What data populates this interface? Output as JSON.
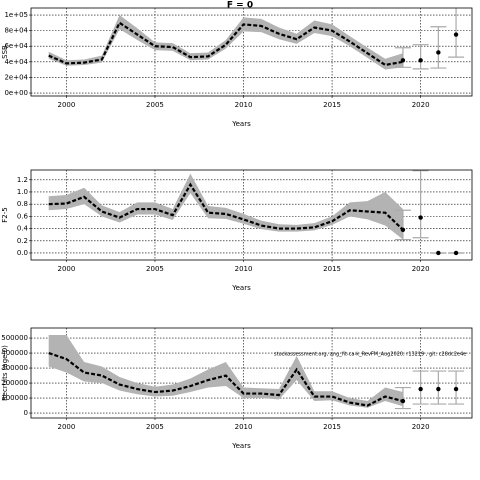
{
  "chart_data": [
    {
      "type": "line",
      "title": "F = 0",
      "ylabel": "SSB",
      "xlabel": "Years",
      "xlim": [
        1998,
        2022.9
      ],
      "xticks": [
        2000,
        2005,
        2010,
        2015,
        2020
      ],
      "ylim": [
        -3800,
        109000
      ],
      "yticks": [
        {
          "value": 0,
          "label": "0e+00"
        },
        {
          "value": 20000,
          "label": "2e+04"
        },
        {
          "value": 40000,
          "label": "4e+04"
        },
        {
          "value": 60000,
          "label": "6e+04"
        },
        {
          "value": 80000,
          "label": "8e+04"
        },
        {
          "value": 100000,
          "label": "1e+05"
        }
      ],
      "grid": true,
      "x": [
        1999,
        2000,
        2001,
        2002,
        2003,
        2004,
        2005,
        2006,
        2007,
        2008,
        2009,
        2010,
        2011,
        2012,
        2013,
        2014,
        2015,
        2016,
        2017,
        2018,
        2019
      ],
      "series": [
        {
          "color": "#000000",
          "band_color": "#b3b3b3",
          "values": [
            48000,
            38000,
            39000,
            43000,
            90000,
            75000,
            60000,
            59000,
            46000,
            47000,
            62000,
            88000,
            86000,
            76000,
            69000,
            84000,
            80000,
            66000,
            51000,
            36000,
            40000
          ],
          "lower": [
            44000,
            35000,
            36000,
            39000,
            82000,
            68000,
            55000,
            54000,
            42000,
            43000,
            57000,
            79000,
            78000,
            69000,
            63000,
            77000,
            73000,
            60000,
            45000,
            30000,
            33000
          ],
          "upper": [
            53000,
            42000,
            43000,
            48000,
            100000,
            83000,
            65000,
            64000,
            51000,
            52000,
            68000,
            97000,
            95000,
            84000,
            76000,
            93000,
            88000,
            73000,
            58000,
            44000,
            51000
          ]
        }
      ],
      "points": {
        "color": "#aaaaaa",
        "x": [
          2019,
          2020,
          2021,
          2022
        ],
        "values": [
          42000,
          42000,
          52000,
          75000
        ],
        "lower": [
          33000,
          31000,
          32000,
          46000
        ],
        "upper": [
          58000,
          62000,
          85000,
          110000
        ]
      }
    },
    {
      "type": "line",
      "ylabel": "F2-5",
      "xlabel": "Years",
      "xlim": [
        1998,
        2022.9
      ],
      "xticks": [
        2000,
        2005,
        2010,
        2015,
        2020
      ],
      "ylim": [
        -0.115,
        1.36
      ],
      "yticks": [
        {
          "value": 0,
          "label": "0.0"
        },
        0.2,
        0.4,
        0.6,
        0.8,
        {
          "value": 1,
          "label": "1.0"
        },
        1.2
      ],
      "grid": true,
      "x": [
        1999,
        2000,
        2001,
        2002,
        2003,
        2004,
        2005,
        2006,
        2007,
        2008,
        2009,
        2010,
        2011,
        2012,
        2013,
        2014,
        2015,
        2016,
        2017,
        2018,
        2019
      ],
      "series": [
        {
          "color": "#000000",
          "band_color": "#b3b3b3",
          "values": [
            0.8,
            0.81,
            0.92,
            0.68,
            0.58,
            0.72,
            0.72,
            0.62,
            1.12,
            0.66,
            0.64,
            0.55,
            0.45,
            0.4,
            0.4,
            0.42,
            0.52,
            0.7,
            0.68,
            0.66,
            0.38
          ],
          "lower": [
            0.7,
            0.72,
            0.8,
            0.6,
            0.5,
            0.63,
            0.63,
            0.54,
            0.98,
            0.57,
            0.56,
            0.48,
            0.39,
            0.35,
            0.35,
            0.37,
            0.46,
            0.6,
            0.55,
            0.45,
            0.22
          ],
          "upper": [
            0.93,
            0.95,
            1.07,
            0.78,
            0.67,
            0.83,
            0.83,
            0.72,
            1.3,
            0.77,
            0.74,
            0.64,
            0.53,
            0.47,
            0.46,
            0.49,
            0.6,
            0.83,
            0.85,
            1.0,
            0.72
          ]
        }
      ],
      "points": {
        "color": "#aaaaaa",
        "x": [
          2019,
          2020,
          2021,
          2022
        ],
        "values": [
          0.38,
          0.58,
          0,
          0
        ],
        "lower": [
          0.22,
          0.25,
          0,
          0
        ],
        "upper": [
          0.7,
          1.35,
          0,
          0
        ]
      }
    },
    {
      "type": "line",
      "ylabel": "Recruits (age 0)",
      "xlabel": "Years",
      "annotation": "stockassessment.org, ang_fit-ca-k_RevFM_Aug2020, r13219 , git: c28dc2e4e",
      "xlim": [
        1998,
        2022.9
      ],
      "xticks": [
        2000,
        2005,
        2010,
        2015,
        2020
      ],
      "ylim": [
        -33000,
        567000
      ],
      "yticks": [
        0,
        100000,
        200000,
        300000,
        400000,
        500000
      ],
      "grid": true,
      "x": [
        1999,
        2000,
        2001,
        2002,
        2003,
        2004,
        2005,
        2006,
        2007,
        2008,
        2009,
        2010,
        2011,
        2012,
        2013,
        2014,
        2015,
        2016,
        2017,
        2018,
        2019
      ],
      "series": [
        {
          "color": "#000000",
          "band_color": "#b3b3b3",
          "values": [
            400000,
            360000,
            270000,
            250000,
            190000,
            160000,
            140000,
            150000,
            180000,
            220000,
            250000,
            130000,
            130000,
            120000,
            290000,
            110000,
            110000,
            70000,
            50000,
            110000,
            80000
          ],
          "lower": [
            310000,
            270000,
            210000,
            200000,
            150000,
            125000,
            110000,
            115000,
            140000,
            170000,
            180000,
            100000,
            100000,
            90000,
            220000,
            80000,
            85000,
            50000,
            35000,
            80000,
            45000
          ],
          "upper": [
            520000,
            520000,
            340000,
            310000,
            240000,
            200000,
            175000,
            190000,
            230000,
            290000,
            340000,
            170000,
            165000,
            160000,
            380000,
            145000,
            145000,
            100000,
            80000,
            170000,
            140000
          ]
        }
      ],
      "points": {
        "color": "#aaaaaa",
        "x": [
          2019,
          2020,
          2021,
          2022
        ],
        "values": [
          80000,
          160000,
          160000,
          160000
        ],
        "lower": [
          30000,
          60000,
          60000,
          60000
        ],
        "upper": [
          170000,
          280000,
          280000,
          280000
        ]
      }
    }
  ]
}
